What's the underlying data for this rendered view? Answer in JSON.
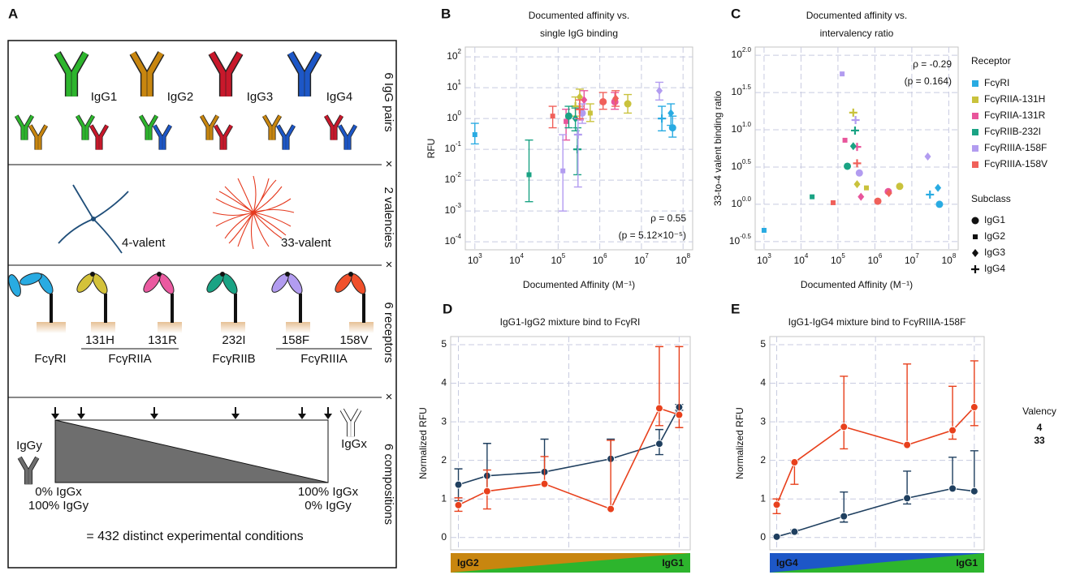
{
  "panel_a": {
    "label": "A",
    "multiplier": "×",
    "side_labels": [
      "6 IgG pairs",
      "2 valencies",
      "6 receptors",
      "6 compositions"
    ],
    "subclasses": [
      "IgG1",
      "IgG2",
      "IgG3",
      "IgG4"
    ],
    "valencies": [
      "4-valent",
      "33-valent"
    ],
    "receptor_variants": [
      "131H",
      "131R",
      "232I",
      "158F",
      "158V"
    ],
    "receptors": [
      "FcγRI",
      "FcγRIIA",
      "FcγRIIB",
      "FcγRIIIA"
    ],
    "composition": {
      "left_label": "IgGy",
      "right_label": "IgGx",
      "left_lines": [
        "0% IgGx",
        "100% IgGy"
      ],
      "right_lines": [
        "100% IgGx",
        "0% IgGy"
      ]
    },
    "summary": "= 432 distinct experimental conditions"
  },
  "chart_data": [
    {
      "type": "scatter",
      "panel": "B",
      "title": [
        "Documented affinity vs.",
        "single IgG binding"
      ],
      "xlabel": "Documented Affinity (M⁻¹)",
      "ylabel": "RFU",
      "xscale": "log",
      "yscale": "log",
      "xlim": [
        589,
        170000000
      ],
      "ylim": [
        5.5e-05,
        209
      ],
      "xticks": [
        {
          "value": 1000,
          "label": "10",
          "exponent": "3"
        },
        {
          "value": 10000,
          "label": "10",
          "exponent": "4"
        },
        {
          "value": 100000,
          "label": "10",
          "exponent": "5"
        },
        {
          "value": 1000000,
          "label": "10",
          "exponent": "6"
        },
        {
          "value": 10000000,
          "label": "10",
          "exponent": "7"
        },
        {
          "value": 100000000,
          "label": "10",
          "exponent": "8"
        }
      ],
      "yticks": [
        {
          "value": 0.0001,
          "label": "10",
          "exponent": "-4"
        },
        {
          "value": 0.001,
          "label": "10",
          "exponent": "-3"
        },
        {
          "value": 0.01,
          "label": "10",
          "exponent": "-2"
        },
        {
          "value": 0.1,
          "label": "10",
          "exponent": "-1"
        },
        {
          "value": 1,
          "label": "10",
          "exponent": "0"
        },
        {
          "value": 10,
          "label": "10",
          "exponent": "1"
        },
        {
          "value": 100,
          "label": "10",
          "exponent": "2"
        }
      ],
      "grid": true,
      "markers": [
        "circle",
        "square",
        "diamond",
        "plus"
      ],
      "annotations": [
        "ρ = 0.55",
        "(p = 5.12×10⁻⁵)"
      ],
      "series": [
        {
          "color": "#29abe2",
          "x": [
            56000000,
            1000,
            51000000,
            31000000
          ],
          "values": [
            0.5,
            0.3,
            1.5,
            1.0
          ],
          "lower": [
            0.25,
            0.15,
            0.6,
            0.4
          ],
          "upper": [
            1.2,
            0.7,
            3,
            2.5
          ]
        },
        {
          "color": "#c9c23c",
          "x": [
            4700000,
            590000,
            330000,
            260000
          ],
          "values": [
            3.0,
            1.5,
            5.0,
            2.5
          ],
          "lower": [
            1.5,
            0.8,
            2.5,
            1.2
          ],
          "upper": [
            6,
            3,
            9,
            5
          ]
        },
        {
          "color": "#e8559b",
          "x": [
            2300000,
            155000,
            420000,
            330000
          ],
          "values": [
            3.5,
            0.8,
            4.0,
            2.0
          ],
          "lower": [
            2,
            0.2,
            2,
            0.9
          ],
          "upper": [
            7,
            2,
            8,
            4
          ]
        },
        {
          "color": "#1aa384",
          "x": [
            180000,
            20000,
            260000,
            290000
          ],
          "values": [
            1.2,
            0.015,
            1.0,
            0.1
          ],
          "lower": [
            0.5,
            0.002,
            0.4,
            0.015
          ],
          "upper": [
            2.5,
            0.2,
            2.2,
            0.5
          ]
        },
        {
          "color": "#b29cf0",
          "x": [
            380000,
            130000,
            27000000,
            300000
          ],
          "values": [
            1.5,
            0.02,
            8.0,
            0.3
          ],
          "lower": [
            0.7,
            0.001,
            4,
            0.006
          ],
          "upper": [
            3,
            0.3,
            15,
            1
          ]
        },
        {
          "color": "#f0605a",
          "x": [
            1200000,
            74000,
            2400000,
            330000
          ],
          "values": [
            3.5,
            1.2,
            4.5,
            2.0
          ],
          "lower": [
            2,
            0.5,
            2.5,
            1
          ],
          "upper": [
            7,
            2.5,
            8,
            4
          ]
        }
      ]
    },
    {
      "type": "scatter",
      "panel": "C",
      "title": [
        "Documented affinity vs.",
        "intervalency ratio"
      ],
      "xlabel": "Documented Affinity (M⁻¹)",
      "ylabel": "33-to-4 valent binding ratio",
      "xscale": "log",
      "yscale": "log",
      "xlim": [
        575,
        180000000
      ],
      "ylim": [
        0.245,
        129
      ],
      "xticks": [
        {
          "value": 1000,
          "label": "10",
          "exponent": "3"
        },
        {
          "value": 10000,
          "label": "10",
          "exponent": "4"
        },
        {
          "value": 100000,
          "label": "10",
          "exponent": "5"
        },
        {
          "value": 1000000,
          "label": "10",
          "exponent": "6"
        },
        {
          "value": 10000000,
          "label": "10",
          "exponent": "7"
        },
        {
          "value": 100000000,
          "label": "10",
          "exponent": "8"
        }
      ],
      "yticks": [
        {
          "value": 0.3162,
          "label": "10",
          "exponent": "-0.5"
        },
        {
          "value": 1,
          "label": "10",
          "exponent": "0.0"
        },
        {
          "value": 3.162,
          "label": "10",
          "exponent": "0.5"
        },
        {
          "value": 10,
          "label": "10",
          "exponent": "1.0"
        },
        {
          "value": 31.62,
          "label": "10",
          "exponent": "1.5"
        },
        {
          "value": 100,
          "label": "10",
          "exponent": "2.0"
        }
      ],
      "grid": true,
      "markers": [
        "circle",
        "square",
        "diamond",
        "plus"
      ],
      "subclasses": [
        "IgG1",
        "IgG2",
        "IgG3",
        "IgG4"
      ],
      "subclass_title": "Subclass",
      "legend": {
        "title": "Receptor",
        "position": "right"
      },
      "annotations": [
        "ρ = -0.29",
        "(p = 0.164)"
      ],
      "series": [
        {
          "name": "FcγRI",
          "color": "#29abe2",
          "x": [
            56000000,
            1000,
            51000000,
            31000000
          ],
          "values": [
            1.0,
            0.447,
            1.66,
            1.35
          ]
        },
        {
          "name": "FcγRIIA-131H",
          "color": "#c9c23c",
          "x": [
            4700000,
            590000,
            330000,
            260000
          ],
          "values": [
            1.74,
            1.66,
            1.86,
            17.0
          ]
        },
        {
          "name": "FcγRIIA-131R",
          "color": "#e8559b",
          "x": [
            2300000,
            155000,
            420000,
            330000
          ],
          "values": [
            1.48,
            7.24,
            1.26,
            5.89
          ]
        },
        {
          "name": "FcγRIIB-232I",
          "color": "#1aa384",
          "x": [
            180000,
            20000,
            260000,
            290000
          ],
          "values": [
            3.24,
            1.26,
            6.03,
            9.77
          ]
        },
        {
          "name": "FcγRIIIA-158F",
          "color": "#b29cf0",
          "x": [
            380000,
            130000,
            27000000,
            300000
          ],
          "values": [
            2.63,
            56.2,
            4.37,
            13.5
          ]
        },
        {
          "name": "FcγRIIIA-158V",
          "color": "#f0605a",
          "x": [
            1200000,
            74000,
            2400000,
            330000
          ],
          "values": [
            1.1,
            1.05,
            1.41,
            3.55
          ]
        }
      ]
    },
    {
      "type": "line",
      "panel": "D",
      "title": "IgG1-IgG2 mixture bind to FcγRI",
      "ylabel": "Normalized RFU",
      "xlim": [
        -0.035,
        1.05
      ],
      "ylim": [
        -0.32,
        5.21
      ],
      "xticks": [
        0,
        0.5,
        1
      ],
      "xtick_labels": false,
      "yticks": [
        0,
        1,
        2,
        3,
        4,
        5
      ],
      "grid": true,
      "x": [
        0,
        0.13,
        0.39,
        0.69,
        0.91,
        1
      ],
      "composition": {
        "left": "IgG2",
        "right": "IgG1",
        "left_color": "#c8860f",
        "right_color": "#2db52d"
      },
      "series": [
        {
          "color": "#1f3f5f",
          "values": [
            1.37,
            1.6,
            1.7,
            2.04,
            2.43,
            3.38
          ],
          "lower": [
            0.95,
            1.2,
            1.7,
            2.04,
            2.15,
            3.3
          ],
          "upper": [
            1.78,
            2.44,
            2.55,
            2.55,
            2.8,
            3.45
          ]
        },
        {
          "color": "#e8401c",
          "values": [
            0.84,
            1.2,
            1.39,
            0.74,
            3.35,
            3.18
          ],
          "lower": [
            0.68,
            0.74,
            1.39,
            0.74,
            2.9,
            2.85
          ],
          "upper": [
            1.03,
            1.75,
            2.1,
            2.52,
            4.95,
            4.95
          ]
        }
      ]
    },
    {
      "type": "line",
      "panel": "E",
      "title": "IgG1-IgG4 mixture bind to FcγRIIIA-158F",
      "ylabel": "Normalized RFU",
      "xlim": [
        -0.035,
        1.05
      ],
      "ylim": [
        -0.32,
        5.21
      ],
      "xticks": [
        0,
        0.5,
        1
      ],
      "xtick_labels": false,
      "yticks": [
        0,
        1,
        2,
        3,
        4,
        5
      ],
      "grid": true,
      "x": [
        0,
        0.09,
        0.34,
        0.66,
        0.89,
        1
      ],
      "composition": {
        "left": "IgG4",
        "right": "IgG1",
        "left_color": "#1d57c7",
        "right_color": "#2db52d"
      },
      "legend": {
        "title": "Valency",
        "position": "right"
      },
      "series": [
        {
          "name": "4",
          "color": "#1f3f5f",
          "values": [
            0.02,
            0.15,
            0.55,
            1.02,
            1.27,
            1.2
          ],
          "lower": [
            0.0,
            0.1,
            0.4,
            0.87,
            1.27,
            1.2
          ],
          "upper": [
            0.05,
            0.2,
            1.18,
            1.72,
            2.08,
            2.25
          ]
        },
        {
          "name": "33",
          "color": "#e8401c",
          "values": [
            0.85,
            1.95,
            2.87,
            2.4,
            2.78,
            3.38
          ],
          "lower": [
            0.62,
            1.38,
            2.3,
            2.4,
            2.55,
            2.9
          ],
          "upper": [
            1.0,
            1.98,
            4.18,
            4.5,
            3.92,
            4.58
          ]
        }
      ]
    }
  ]
}
